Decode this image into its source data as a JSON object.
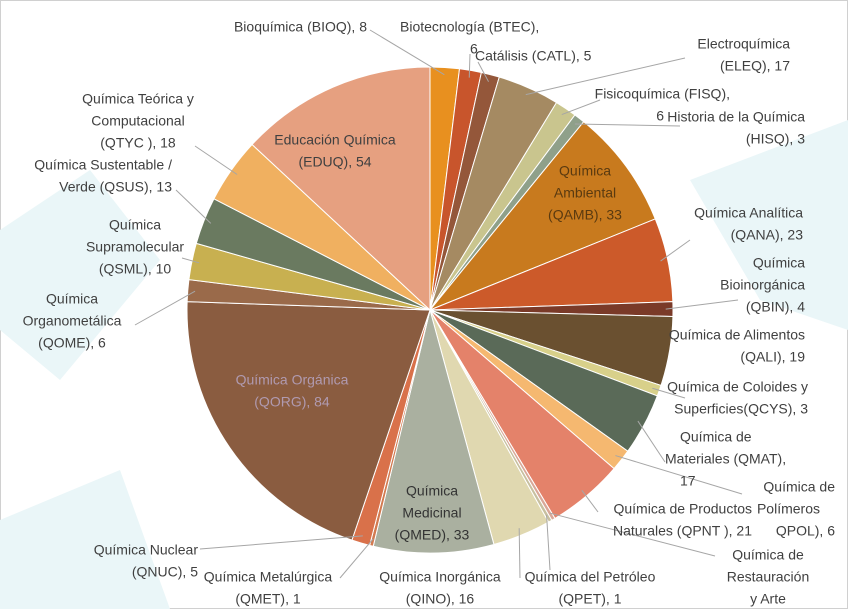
{
  "chart_data": {
    "type": "pie",
    "labels": [
      [
        "Bioquímica (BIOQ), 8"
      ],
      [
        "Biotecnología (BTEC),",
        "6"
      ],
      [
        "Catálisis (CATL), 5"
      ],
      [
        "Electroquímica",
        "(ELEQ), 17"
      ],
      [
        "Fisicoquímica (FISQ),",
        "6"
      ],
      [
        "Historia de la Química",
        "(HISQ), 3"
      ],
      [
        "Química",
        "Ambiental",
        "(QAMB), 33"
      ],
      [
        "Química Analítica",
        "(QANA), 23"
      ],
      [
        "Química",
        "Bioinorgánica",
        "(QBIN), 4"
      ],
      [
        "Química de Alimentos",
        "(QALI), 19"
      ],
      [
        "Química de Coloides y",
        "Superficies(QCYS), 3"
      ],
      [
        "Química de",
        "Materiales (QMAT),",
        "17"
      ],
      [
        "Química de",
        "Polímeros",
        "QPOL), 6"
      ],
      [
        "Química de Productos",
        "Naturales (QPNT ), 21"
      ],
      [
        "Química de",
        "Restauración",
        "y Arte"
      ],
      [
        "Química del Petróleo",
        "(QPET), 1"
      ],
      [
        "Química Inorgánica",
        "(QINO), 16"
      ],
      [
        "Química",
        "Medicinal",
        "(QMED), 33"
      ],
      [
        "Química Metalúrgica",
        "(QMET), 1"
      ],
      [
        "Química Nuclear",
        "(QNUC), 5"
      ],
      [
        "Química Orgánica",
        "(QORG), 84"
      ],
      [
        "Química",
        "Organometálica",
        "(QOME), 6"
      ],
      [
        "Química",
        "Supramolecular",
        "(QSML), 10"
      ],
      [
        "Química Sustentable /",
        "Verde (QSUS), 13"
      ],
      [
        "Química Teórica y",
        "Computacional",
        "(QTYC ), 18"
      ],
      [
        "Educación Química",
        "(EDUQ), 54"
      ]
    ],
    "values": [
      8,
      6,
      5,
      17,
      6,
      3,
      33,
      23,
      4,
      19,
      3,
      17,
      6,
      21,
      1,
      1,
      16,
      33,
      1,
      5,
      84,
      6,
      10,
      13,
      18,
      54
    ],
    "colors": [
      "#e8901f",
      "#c8552c",
      "#94573a",
      "#a58a62",
      "#c9c58e",
      "#8fa08a",
      "#c87a1e",
      "#cc5a2a",
      "#7a3a28",
      "#6a5030",
      "#d8d08a",
      "#5a6a58",
      "#f5b870",
      "#e4826a",
      "#d9a898",
      "#c8c0a0",
      "#e0d8b0",
      "#aab0a0",
      "#d27a50",
      "#d9714a",
      "#8a5c40",
      "#9a6a4a",
      "#c8b050",
      "#6a7a60",
      "#f0b060",
      "#e6a080"
    ]
  }
}
